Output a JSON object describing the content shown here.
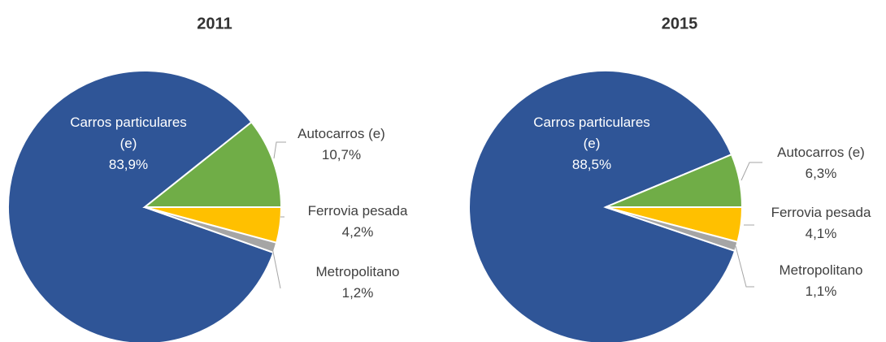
{
  "chart_data": [
    {
      "type": "pie",
      "title": "2011",
      "categories": [
        "Carros particulares (e)",
        "Autocarros (e)",
        "Ferrovia pesada",
        "Metropolitano"
      ],
      "values": [
        83.9,
        10.7,
        4.2,
        1.2
      ],
      "value_labels": [
        "83,9%",
        "10,7%",
        "4,2%",
        "1,2%"
      ],
      "colors": [
        "#2f5597",
        "#70ad47",
        "#ffc000",
        "#a5a5a5"
      ]
    },
    {
      "type": "pie",
      "title": "2015",
      "categories": [
        "Carros particulares (e)",
        "Autocarros (e)",
        "Ferrovia pesada",
        "Metropolitano"
      ],
      "values": [
        88.5,
        6.3,
        4.1,
        1.1
      ],
      "value_labels": [
        "88,5%",
        "6,3%",
        "4,1%",
        "1,1%"
      ],
      "colors": [
        "#2f5597",
        "#70ad47",
        "#ffc000",
        "#a5a5a5"
      ]
    }
  ]
}
